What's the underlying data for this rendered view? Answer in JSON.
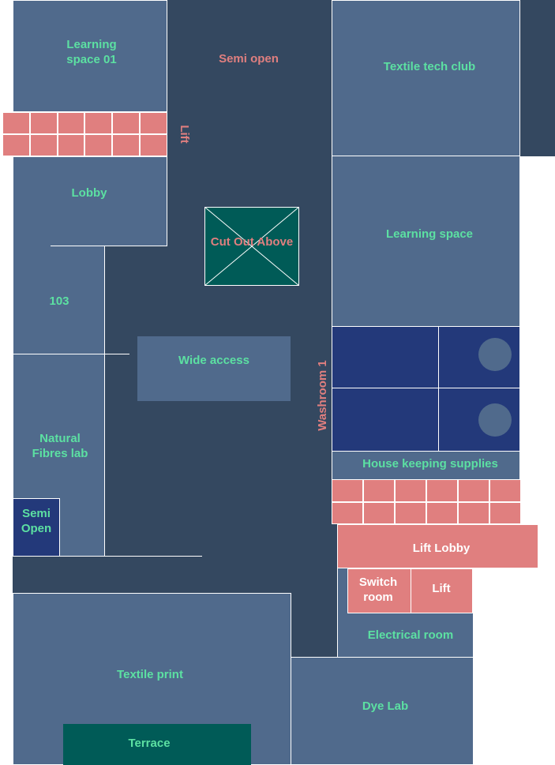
{
  "labels": {
    "learning_space_01": "Learning space 01",
    "semi_open_top": "Semi open",
    "textile_tech_club": "Textile tech club",
    "lift_vertical": "Lift",
    "lobby": "Lobby",
    "cut_out_above": "Cut Out Above",
    "learning_space": "Learning space",
    "room_103": "103",
    "wide_access": "Wide access",
    "washroom_1": "Washroom 1",
    "natural_fibres_lab": "Natural Fibres lab",
    "house_keeping_supplies": "House keeping supplies",
    "semi_open_small": "Semi Open",
    "lift_lobby": "Lift Lobby",
    "switch_room": "Switch room",
    "lift_small": "Lift",
    "electrical_room": "Electrical room",
    "textile_print": "Textile print",
    "dye_lab": "Dye Lab",
    "terrace": "Terrace"
  },
  "colors": {
    "corridor": "#344860",
    "room": "#506a8c",
    "washroom": "#23397a",
    "teal": "#005b57",
    "pink": "#e07f7f",
    "green_text": "#5ce0a2",
    "white": "#ffffff"
  }
}
